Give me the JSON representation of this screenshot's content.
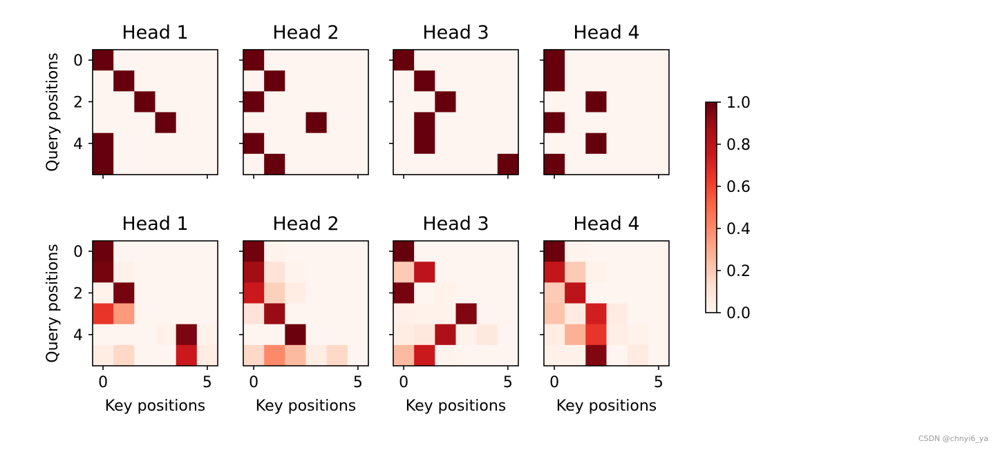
{
  "chart_data": {
    "type": "heatmap",
    "colormap": "Reds",
    "colorbar": {
      "min": 0.0,
      "max": 1.0,
      "ticks": [
        "0.0",
        "0.2",
        "0.4",
        "0.6",
        "0.8",
        "1.0"
      ]
    },
    "xlabel": "Key positions",
    "ylabel": "Query positions",
    "xticks": [
      "0",
      "5"
    ],
    "yticks": [
      "0",
      "2",
      "4"
    ],
    "rows": [
      {
        "heads": [
          {
            "title": "Head 1",
            "matrix": [
              [
                1,
                0,
                0,
                0,
                0,
                0
              ],
              [
                0,
                1,
                0,
                0,
                0,
                0
              ],
              [
                0,
                0,
                1,
                0,
                0,
                0
              ],
              [
                0,
                0,
                0,
                1,
                0,
                0
              ],
              [
                1,
                0,
                0,
                0,
                0,
                0
              ],
              [
                1,
                0,
                0,
                0,
                0,
                0
              ]
            ]
          },
          {
            "title": "Head 2",
            "matrix": [
              [
                1,
                0,
                0,
                0,
                0,
                0
              ],
              [
                0,
                1,
                0,
                0,
                0,
                0
              ],
              [
                1,
                0,
                0,
                0,
                0,
                0
              ],
              [
                0,
                0,
                0,
                1,
                0,
                0
              ],
              [
                1,
                0,
                0,
                0,
                0,
                0
              ],
              [
                0,
                1,
                0,
                0,
                0,
                0
              ]
            ]
          },
          {
            "title": "Head 3",
            "matrix": [
              [
                1,
                0,
                0,
                0,
                0,
                0
              ],
              [
                0,
                1,
                0,
                0,
                0,
                0
              ],
              [
                0,
                0,
                1,
                0,
                0,
                0
              ],
              [
                0,
                1,
                0,
                0,
                0,
                0
              ],
              [
                0,
                1,
                0,
                0,
                0,
                0
              ],
              [
                0,
                0,
                0,
                0,
                0,
                1
              ]
            ]
          },
          {
            "title": "Head 4",
            "matrix": [
              [
                1,
                0,
                0,
                0,
                0,
                0
              ],
              [
                1,
                0,
                0,
                0,
                0,
                0
              ],
              [
                0,
                0,
                1,
                0,
                0,
                0
              ],
              [
                1,
                0,
                0,
                0,
                0,
                0
              ],
              [
                0,
                0,
                1,
                0,
                0,
                0
              ],
              [
                1,
                0,
                0,
                0,
                0,
                0
              ]
            ]
          }
        ]
      },
      {
        "heads": [
          {
            "title": "Head 1",
            "matrix": [
              [
                0.99,
                0,
                0,
                0,
                0,
                0
              ],
              [
                0.97,
                0.03,
                0,
                0,
                0,
                0
              ],
              [
                0.02,
                0.97,
                0,
                0,
                0,
                0
              ],
              [
                0.65,
                0.35,
                0,
                0,
                0,
                0
              ],
              [
                0,
                0,
                0,
                0.02,
                0.96,
                0.02
              ],
              [
                0.05,
                0.15,
                0,
                0,
                0.75,
                0.05
              ]
            ]
          },
          {
            "title": "Head 2",
            "matrix": [
              [
                0.98,
                0.01,
                0,
                0,
                0,
                0
              ],
              [
                0.88,
                0.1,
                0.01,
                0,
                0,
                0
              ],
              [
                0.75,
                0.18,
                0.05,
                0,
                0,
                0
              ],
              [
                0.1,
                0.9,
                0,
                0,
                0,
                0
              ],
              [
                0,
                0,
                0.99,
                0,
                0,
                0
              ],
              [
                0.15,
                0.4,
                0.25,
                0.05,
                0.15,
                0
              ]
            ]
          },
          {
            "title": "Head 3",
            "matrix": [
              [
                1.0,
                0,
                0,
                0,
                0,
                0
              ],
              [
                0.2,
                0.8,
                0,
                0,
                0,
                0
              ],
              [
                0.97,
                0,
                0.02,
                0,
                0,
                0
              ],
              [
                0.03,
                0.02,
                0.02,
                0.95,
                0,
                0
              ],
              [
                0.05,
                0.08,
                0.85,
                0.02,
                0.07,
                0
              ],
              [
                0.25,
                0.75,
                0.01,
                0,
                0,
                0
              ]
            ]
          },
          {
            "title": "Head 4",
            "matrix": [
              [
                0.99,
                0.01,
                0,
                0,
                0,
                0
              ],
              [
                0.78,
                0.2,
                0.02,
                0,
                0,
                0
              ],
              [
                0.2,
                0.8,
                0,
                0,
                0,
                0
              ],
              [
                0.22,
                0.06,
                0.73,
                0.06,
                0,
                0
              ],
              [
                0.05,
                0.28,
                0.65,
                0.04,
                0.02,
                0
              ],
              [
                0.03,
                0.02,
                0.95,
                0,
                0.06,
                0
              ]
            ]
          }
        ]
      }
    ]
  },
  "watermark": "CSDN @chnyi6_ya"
}
